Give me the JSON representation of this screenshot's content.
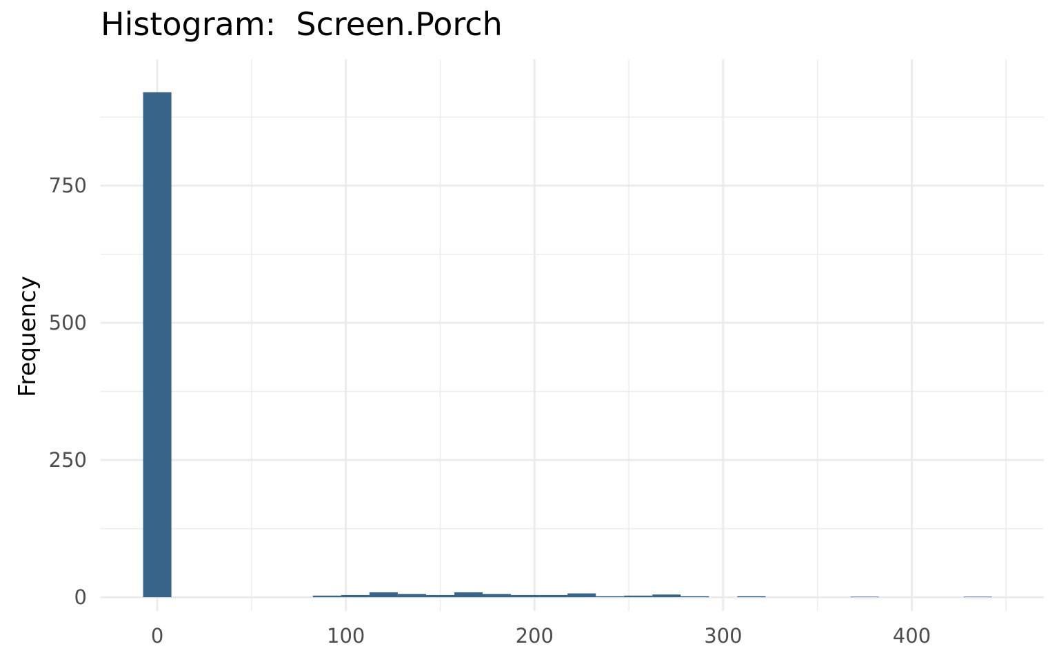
{
  "chart_data": {
    "type": "bar",
    "title": "Histogram:  Screen.Porch",
    "xlabel": "",
    "ylabel": "Frequency",
    "bin_width": 15,
    "bins": [
      {
        "x": 0,
        "count": 920
      },
      {
        "x": 90,
        "count": 3
      },
      {
        "x": 105,
        "count": 4
      },
      {
        "x": 120,
        "count": 9
      },
      {
        "x": 135,
        "count": 6
      },
      {
        "x": 150,
        "count": 4
      },
      {
        "x": 165,
        "count": 9
      },
      {
        "x": 180,
        "count": 6
      },
      {
        "x": 195,
        "count": 4
      },
      {
        "x": 210,
        "count": 4
      },
      {
        "x": 225,
        "count": 7
      },
      {
        "x": 240,
        "count": 2
      },
      {
        "x": 255,
        "count": 3
      },
      {
        "x": 270,
        "count": 5
      },
      {
        "x": 285,
        "count": 2
      },
      {
        "x": 315,
        "count": 2
      },
      {
        "x": 375,
        "count": 1
      },
      {
        "x": 435,
        "count": 1
      }
    ],
    "xlim": [
      -30,
      470
    ],
    "ylim": [
      -25,
      980
    ],
    "x_ticks": [
      0,
      100,
      200,
      300,
      400
    ],
    "x_tick_labels": [
      "0",
      "100",
      "200",
      "300",
      "400"
    ],
    "y_ticks": [
      0,
      250,
      500,
      750
    ],
    "y_tick_labels": [
      "0",
      "250",
      "500",
      "750"
    ],
    "grid": true,
    "bar_color": "#386489",
    "grid_color": "#ebebeb"
  }
}
